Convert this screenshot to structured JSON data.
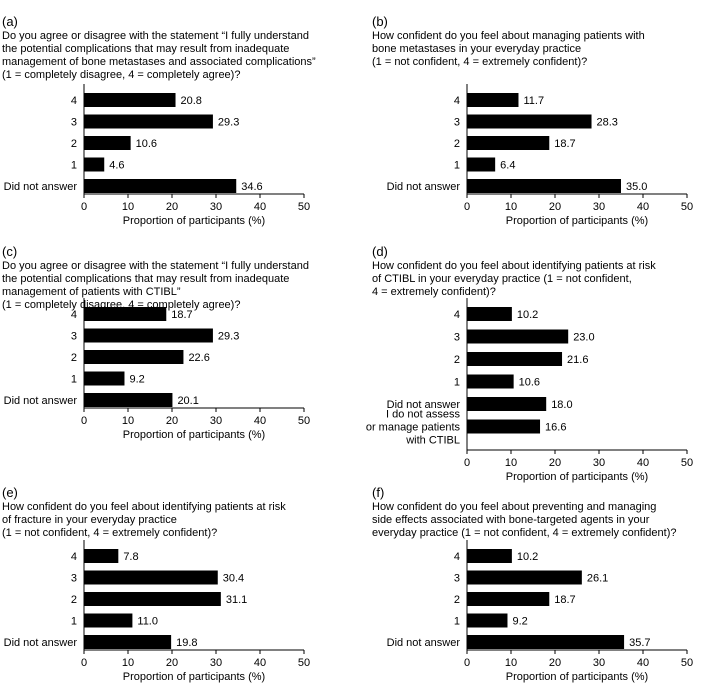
{
  "xlabel": "Proportion of participants (%)",
  "xlim": [
    0,
    50
  ],
  "xticks": [
    0,
    10,
    20,
    30,
    40,
    50
  ],
  "chart_data": [
    {
      "type": "bar",
      "letter": "(a)",
      "caption": "Do you agree or disagree with the statement “I fully understand\nthe potential complications that may result from inadequate\nmanagement of bone metastases and associated complications”\n(1 = completely disagree, 4 = completely agree)?",
      "categories": [
        "4",
        "3",
        "2",
        "1",
        "Did not answer"
      ],
      "values": [
        20.8,
        29.3,
        10.6,
        4.6,
        34.6
      ],
      "labels": [
        "20.8",
        "29.3",
        "10.6",
        "4.6",
        "34.6"
      ],
      "xlabel": "Proportion of participants (%)",
      "xlim": [
        0,
        50
      ]
    },
    {
      "type": "bar",
      "letter": "(b)",
      "caption": "How confident do you feel about managing patients with\nbone metastases in your everyday practice\n(1 = not confident, 4 = extremely confident)?",
      "categories": [
        "4",
        "3",
        "2",
        "1",
        "Did not answer"
      ],
      "values": [
        11.7,
        28.3,
        18.7,
        6.4,
        35.0
      ],
      "labels": [
        "11.7",
        "28.3",
        "18.7",
        "6.4",
        "35.0"
      ],
      "xlabel": "Proportion of participants (%)",
      "xlim": [
        0,
        50
      ]
    },
    {
      "type": "bar",
      "letter": "(c)",
      "caption": "Do you agree or disagree with the statement “I fully understand\nthe potential complications that may result from inadequate\nmanagement of patients with CTIBL”\n(1 = completely disagree, 4 = completely agree)?",
      "categories": [
        "4",
        "3",
        "2",
        "1",
        "Did not answer"
      ],
      "values": [
        18.7,
        29.3,
        22.6,
        9.2,
        20.1
      ],
      "labels": [
        "18.7",
        "29.3",
        "22.6",
        "9.2",
        "20.1"
      ],
      "xlabel": "Proportion of participants (%)",
      "xlim": [
        0,
        50
      ]
    },
    {
      "type": "bar",
      "letter": "(d)",
      "caption": "How confident do you feel about identifying patients at risk\nof CTIBL in your everyday practice (1 = not confident,\n4 = extremely confident)?",
      "categories": [
        "4",
        "3",
        "2",
        "1",
        "Did not answer",
        "I do not assess\nor manage patients\nwith CTIBL"
      ],
      "values": [
        10.2,
        23.0,
        21.6,
        10.6,
        18.0,
        16.6
      ],
      "labels": [
        "10.2",
        "23.0",
        "21.6",
        "10.6",
        "18.0",
        "16.6"
      ],
      "xlabel": "Proportion of participants (%)",
      "xlim": [
        0,
        50
      ]
    },
    {
      "type": "bar",
      "letter": "(e)",
      "caption": "How confident do you feel about identifying patients at risk\nof fracture in your everyday practice\n(1 = not confident, 4 = extremely confident)?",
      "categories": [
        "4",
        "3",
        "2",
        "1",
        "Did not answer"
      ],
      "values": [
        7.8,
        30.4,
        31.1,
        11.0,
        19.8
      ],
      "labels": [
        "7.8",
        "30.4",
        "31.1",
        "11.0",
        "19.8"
      ],
      "xlabel": "Proportion of participants (%)",
      "xlim": [
        0,
        50
      ]
    },
    {
      "type": "bar",
      "letter": "(f)",
      "caption": "How confident do you feel about preventing and managing\nside effects associated with bone-targeted agents in your\neveryday practice (1 = not confident, 4 = extremely confident)?",
      "categories": [
        "4",
        "3",
        "2",
        "1",
        "Did not answer"
      ],
      "values": [
        10.2,
        26.1,
        18.7,
        9.2,
        35.7
      ],
      "labels": [
        "10.2",
        "26.1",
        "18.7",
        "9.2",
        "35.7"
      ],
      "xlabel": "Proportion of participants (%)",
      "xlim": [
        0,
        50
      ]
    }
  ]
}
